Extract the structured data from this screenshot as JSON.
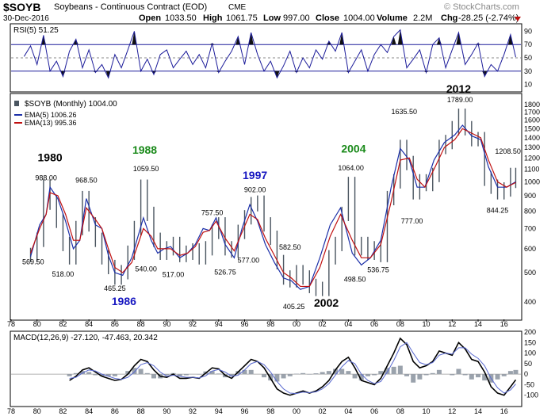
{
  "header": {
    "symbol": "$SOYB",
    "title": "Soybeans - Continuous Contract (EOD)",
    "exchange": "CME",
    "date": "30-Dec-2016",
    "brand": "© StockCharts.com",
    "open_label": "Open",
    "open": "1033.50",
    "high_label": "High",
    "high": "1061.75",
    "low_label": "Low",
    "low": "997.00",
    "close_label": "Close",
    "close": "1004.00",
    "volume_label": "Volume",
    "volume": "2.2M",
    "chg_label": "Chg",
    "chg": "-28.25 (-2.74%)"
  },
  "colors": {
    "price": "#4a5560",
    "ema5": "#1b2fa8",
    "ema13": "#c01010",
    "rsi": "#1c1c9a",
    "macd": "#000000",
    "signal": "#5a6ad0",
    "hist": "#9aa2ac",
    "green_year": "#1a8a1a",
    "blue_year": "#1515c0",
    "chg_down": "#c01010"
  },
  "chart_data": [
    {
      "type": "line",
      "panel": "RSI",
      "title": "RSI(5) 51.25",
      "ylim": [
        0,
        100
      ],
      "y_ticks": [
        10,
        30,
        50,
        70,
        90
      ],
      "levels": [
        30,
        70
      ],
      "x": [
        1979.0,
        1979.5,
        1980.0,
        1980.5,
        1981.0,
        1981.5,
        1982.0,
        1982.5,
        1983.0,
        1983.5,
        1984.0,
        1984.5,
        1985.0,
        1985.5,
        1986.0,
        1986.5,
        1987.0,
        1987.5,
        1988.0,
        1988.5,
        1989.0,
        1989.5,
        1990.0,
        1990.5,
        1991.0,
        1991.5,
        1992.0,
        1992.5,
        1993.0,
        1993.5,
        1994.0,
        1994.5,
        1995.0,
        1995.5,
        1996.0,
        1996.5,
        1997.0,
        1997.5,
        1998.0,
        1998.5,
        1999.0,
        1999.5,
        2000.0,
        2000.5,
        2001.0,
        2001.5,
        2002.0,
        2002.5,
        2003.0,
        2003.5,
        2004.0,
        2004.5,
        2005.0,
        2005.5,
        2006.0,
        2006.5,
        2007.0,
        2007.5,
        2008.0,
        2008.5,
        2009.0,
        2009.5,
        2010.0,
        2010.5,
        2011.0,
        2011.5,
        2012.0,
        2012.5,
        2013.0,
        2013.5,
        2014.0,
        2014.5,
        2015.0,
        2015.5,
        2016.0,
        2016.5,
        2016.9
      ],
      "values": [
        52,
        68,
        40,
        84,
        30,
        45,
        22,
        60,
        78,
        35,
        62,
        28,
        40,
        20,
        55,
        35,
        62,
        90,
        30,
        48,
        25,
        55,
        62,
        35,
        48,
        60,
        40,
        55,
        35,
        72,
        28,
        45,
        60,
        82,
        40,
        88,
        55,
        30,
        45,
        20,
        38,
        60,
        28,
        50,
        35,
        62,
        48,
        75,
        60,
        88,
        28,
        45,
        62,
        30,
        55,
        70,
        58,
        82,
        92,
        35,
        48,
        62,
        28,
        70,
        80,
        35,
        62,
        88,
        40,
        55,
        72,
        22,
        40,
        30,
        55,
        85,
        51
      ]
    },
    {
      "type": "line",
      "panel": "price",
      "title": "$SOYB (Monthly) 1004.00",
      "y_scale": "log",
      "ylim": [
        350,
        1950
      ],
      "y_ticks": [
        400,
        500,
        600,
        700,
        800,
        900,
        1000,
        1100,
        1200,
        1300,
        1400,
        1500,
        1600,
        1700,
        1800
      ],
      "x_ticks": [
        "78",
        "80",
        "82",
        "84",
        "86",
        "88",
        "90",
        "92",
        "94",
        "96",
        "98",
        "00",
        "02",
        "04",
        "06",
        "08",
        "10",
        "12",
        "14",
        "16"
      ],
      "xlim": [
        1978,
        2017.3
      ],
      "series": [
        {
          "name": "EMA(5) 1006.26",
          "values": [
            565,
            720,
            780,
            960,
            880,
            740,
            600,
            640,
            880,
            720,
            700,
            570,
            500,
            490,
            560,
            760,
            640,
            580,
            600,
            610,
            560,
            580,
            620,
            700,
            690,
            760,
            620,
            560,
            700,
            840,
            740,
            620,
            540,
            480,
            470,
            440,
            450,
            560,
            720,
            820,
            580,
            530,
            560,
            640,
            960,
            1290,
            1180,
            960,
            960,
            1180,
            1350,
            1430,
            1540,
            1420,
            1380,
            1120,
            960,
            960,
            1000
          ]
        },
        {
          "name": "EMA(13) 995.36",
          "values": [
            580,
            700,
            780,
            920,
            900,
            780,
            640,
            640,
            820,
            750,
            700,
            600,
            520,
            500,
            540,
            700,
            660,
            600,
            600,
            600,
            570,
            580,
            610,
            680,
            690,
            740,
            650,
            590,
            680,
            780,
            750,
            650,
            570,
            500,
            480,
            450,
            450,
            520,
            660,
            780,
            640,
            560,
            560,
            620,
            860,
            1180,
            1200,
            1020,
            960,
            1100,
            1300,
            1380,
            1500,
            1450,
            1400,
            1180,
            1000,
            960,
            995
          ]
        }
      ],
      "ema_x": [
        1979.5,
        1980.2,
        1980.7,
        1981.0,
        1981.6,
        1982.2,
        1982.8,
        1983.3,
        1983.8,
        1984.5,
        1985.0,
        1985.5,
        1986.0,
        1986.6,
        1987.3,
        1988.2,
        1988.8,
        1989.3,
        1989.8,
        1990.3,
        1991.0,
        1991.6,
        1992.2,
        1992.8,
        1993.3,
        1993.8,
        1994.5,
        1995.2,
        1995.8,
        1996.4,
        1997.0,
        1997.6,
        1998.3,
        1999.0,
        1999.6,
        2000.3,
        2001.0,
        2001.8,
        2002.6,
        2003.4,
        2004.3,
        2005.0,
        2005.7,
        2006.5,
        2007.3,
        2008.0,
        2008.7,
        2009.3,
        2009.9,
        2010.6,
        2011.4,
        2012.2,
        2012.8,
        2013.5,
        2014.2,
        2014.8,
        2015.5,
        2016.2,
        2016.9
      ],
      "price_x": [
        1979.5,
        1980.0,
        1980.5,
        1981.0,
        1981.5,
        1982.0,
        1982.5,
        1983.0,
        1983.5,
        1984.0,
        1984.5,
        1985.0,
        1985.5,
        1986.0,
        1986.5,
        1987.0,
        1987.5,
        1988.0,
        1988.5,
        1989.0,
        1989.5,
        1990.0,
        1990.5,
        1991.0,
        1991.5,
        1992.0,
        1992.5,
        1993.0,
        1993.5,
        1994.0,
        1994.5,
        1995.0,
        1995.5,
        1996.0,
        1996.5,
        1997.0,
        1997.5,
        1998.0,
        1998.5,
        1999.0,
        1999.5,
        2000.0,
        2000.5,
        2001.0,
        2001.5,
        2002.0,
        2002.5,
        2003.0,
        2003.5,
        2004.0,
        2004.5,
        2005.0,
        2005.5,
        2006.0,
        2006.5,
        2007.0,
        2007.5,
        2008.0,
        2008.5,
        2009.0,
        2009.5,
        2010.0,
        2010.5,
        2011.0,
        2011.5,
        2012.0,
        2012.5,
        2013.0,
        2013.5,
        2014.0,
        2014.5,
        2015.0,
        2015.5,
        2016.0,
        2016.5,
        2016.9
      ],
      "price_values": [
        570,
        640,
        960,
        850,
        740,
        620,
        560,
        700,
        880,
        720,
        640,
        560,
        520,
        480,
        500,
        580,
        700,
        960,
        780,
        640,
        580,
        600,
        620,
        570,
        580,
        590,
        560,
        600,
        680,
        720,
        600,
        590,
        680,
        760,
        840,
        850,
        720,
        650,
        540,
        480,
        470,
        500,
        480,
        450,
        440,
        440,
        560,
        620,
        780,
        980,
        600,
        620,
        580,
        600,
        570,
        880,
        1000,
        1300,
        1150,
        920,
        1000,
        980,
        1050,
        1300,
        1350,
        1500,
        1650,
        1500,
        1380,
        1380,
        1020,
        960,
        920,
        940,
        1050,
        1004
      ]
    },
    {
      "type": "line",
      "panel": "MACD",
      "title": "MACD(12,26,9) -27.120, -47.463, 20.342",
      "ylim": [
        -150,
        200
      ],
      "y_ticks": [
        -100,
        -50,
        0,
        50,
        100,
        150,
        200
      ],
      "x": [
        1982.5,
        1983.0,
        1983.5,
        1984.0,
        1984.5,
        1985.0,
        1985.5,
        1986.0,
        1986.5,
        1987.0,
        1987.5,
        1988.0,
        1988.5,
        1989.0,
        1989.5,
        1990.0,
        1990.5,
        1991.0,
        1991.5,
        1992.0,
        1992.5,
        1993.0,
        1993.5,
        1994.0,
        1994.5,
        1995.0,
        1995.5,
        1996.0,
        1996.5,
        1997.0,
        1997.5,
        1998.0,
        1998.5,
        1999.0,
        1999.5,
        2000.0,
        2000.5,
        2001.0,
        2001.5,
        2002.0,
        2002.5,
        2003.0,
        2003.5,
        2004.0,
        2004.5,
        2005.0,
        2005.5,
        2006.0,
        2006.5,
        2007.0,
        2007.5,
        2008.0,
        2008.5,
        2009.0,
        2009.5,
        2010.0,
        2010.5,
        2011.0,
        2011.5,
        2012.0,
        2012.5,
        2013.0,
        2013.5,
        2014.0,
        2014.5,
        2015.0,
        2015.5,
        2016.0,
        2016.5,
        2016.9
      ],
      "series": [
        {
          "name": "MACD",
          "values": [
            -30,
            -10,
            20,
            30,
            10,
            -10,
            -20,
            -30,
            -25,
            0,
            40,
            70,
            60,
            20,
            -10,
            -15,
            0,
            -20,
            -20,
            -15,
            -20,
            5,
            30,
            25,
            -5,
            -20,
            10,
            40,
            70,
            60,
            30,
            -20,
            -70,
            -90,
            -100,
            -90,
            -80,
            -90,
            -80,
            -60,
            -30,
            20,
            60,
            80,
            30,
            -30,
            -40,
            -50,
            -20,
            40,
            100,
            170,
            140,
            60,
            30,
            40,
            60,
            110,
            100,
            90,
            150,
            120,
            70,
            60,
            10,
            -60,
            -90,
            -100,
            -60,
            -27
          ]
        },
        {
          "name": "Signal",
          "values": [
            -20,
            -15,
            5,
            20,
            15,
            0,
            -10,
            -20,
            -25,
            -15,
            10,
            45,
            55,
            40,
            10,
            -10,
            -5,
            -10,
            -15,
            -15,
            -18,
            -8,
            15,
            22,
            10,
            -10,
            -5,
            20,
            50,
            60,
            45,
            10,
            -35,
            -70,
            -90,
            -92,
            -85,
            -88,
            -84,
            -70,
            -45,
            -5,
            35,
            65,
            50,
            0,
            -30,
            -45,
            -35,
            10,
            65,
            130,
            150,
            100,
            55,
            45,
            55,
            90,
            100,
            95,
            125,
            125,
            95,
            75,
            40,
            -20,
            -65,
            -90,
            -75,
            -47
          ]
        }
      ],
      "histogram": [
        -10,
        5,
        15,
        10,
        -5,
        -10,
        -10,
        -10,
        0,
        15,
        30,
        25,
        5,
        -20,
        -20,
        -5,
        5,
        -10,
        -5,
        0,
        -2,
        13,
        15,
        3,
        -15,
        -10,
        15,
        20,
        20,
        0,
        -15,
        -30,
        -35,
        -20,
        -10,
        2,
        5,
        -2,
        4,
        10,
        15,
        25,
        25,
        15,
        -20,
        -30,
        -10,
        -5,
        15,
        30,
        35,
        40,
        -10,
        -40,
        -25,
        -5,
        5,
        20,
        0,
        -5,
        25,
        -5,
        -25,
        -15,
        -30,
        -40,
        -25,
        -10,
        15,
        20
      ]
    }
  ],
  "price_panel": {
    "legend_title": "$SOYB (Monthly) 1004.00",
    "legend_ema5": "EMA(5) 1006.26",
    "legend_ema13": "EMA(13) 995.36",
    "annotations": [
      {
        "text": "569.50",
        "x": 1979.7,
        "v": 569.5,
        "below": true
      },
      {
        "text": "988.00",
        "x": 1980.7,
        "v": 988,
        "below": false
      },
      {
        "text": "518.00",
        "x": 1982.0,
        "v": 518,
        "below": true
      },
      {
        "text": "968.50",
        "x": 1983.8,
        "v": 968.5,
        "below": false
      },
      {
        "text": "465.25",
        "x": 1986.0,
        "v": 465.25,
        "below": true
      },
      {
        "text": "1059.50",
        "x": 1988.4,
        "v": 1059.5,
        "below": false
      },
      {
        "text": "540.00",
        "x": 1988.4,
        "v": 540,
        "below": true
      },
      {
        "text": "517.00",
        "x": 1990.5,
        "v": 517,
        "below": true
      },
      {
        "text": "757.50",
        "x": 1993.5,
        "v": 757.5,
        "below": false
      },
      {
        "text": "526.75",
        "x": 1994.5,
        "v": 526.75,
        "below": true
      },
      {
        "text": "902.00",
        "x": 1996.8,
        "v": 902,
        "below": false
      },
      {
        "text": "577.00",
        "x": 1996.3,
        "v": 577,
        "below": true
      },
      {
        "text": "582.50",
        "x": 1999.5,
        "v": 582.5,
        "below": false
      },
      {
        "text": "405.25",
        "x": 1999.8,
        "v": 405.25,
        "below": true
      },
      {
        "text": "1064.00",
        "x": 2004.2,
        "v": 1064,
        "below": false
      },
      {
        "text": "498.50",
        "x": 2004.5,
        "v": 498.5,
        "below": true
      },
      {
        "text": "536.75",
        "x": 2006.3,
        "v": 536.75,
        "below": true
      },
      {
        "text": "1635.50",
        "x": 2008.3,
        "v": 1635.5,
        "below": false
      },
      {
        "text": "777.00",
        "x": 2008.9,
        "v": 777,
        "below": true
      },
      {
        "text": "1789.00",
        "x": 2012.6,
        "v": 1789,
        "below": false
      },
      {
        "text": "1208.50",
        "x": 2016.3,
        "v": 1208.5,
        "below": false
      },
      {
        "text": "844.25",
        "x": 2015.5,
        "v": 844.25,
        "below": true
      }
    ],
    "years": [
      {
        "text": "1980",
        "x": 1981.0,
        "v": 1170,
        "color": "#000000"
      },
      {
        "text": "1986",
        "x": 1986.7,
        "v": 390,
        "color": "#1515c0"
      },
      {
        "text": "1988",
        "x": 1988.3,
        "v": 1240,
        "color": "#1a8a1a"
      },
      {
        "text": "1997",
        "x": 1996.8,
        "v": 1020,
        "color": "#1515c0"
      },
      {
        "text": "2002",
        "x": 2002.3,
        "v": 385,
        "color": "#000000"
      },
      {
        "text": "2004",
        "x": 2004.4,
        "v": 1250,
        "color": "#1a8a1a"
      },
      {
        "text": "2012",
        "x": 2012.5,
        "v": 2030,
        "color": "#000000"
      }
    ]
  }
}
